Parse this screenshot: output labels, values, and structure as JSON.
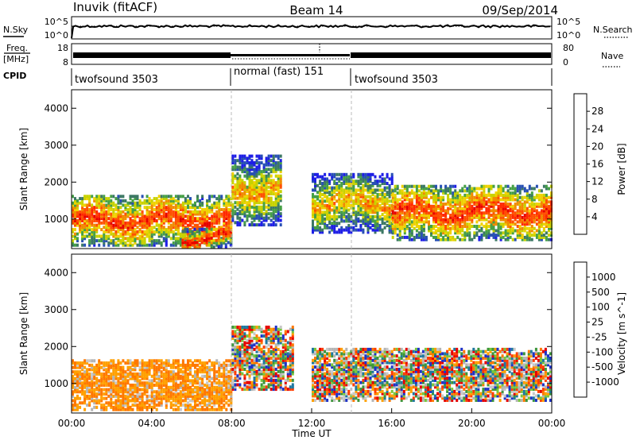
{
  "header": {
    "station": "Inuvik (fitACF)",
    "beam": "Beam 14",
    "date": "09/Sep/2014"
  },
  "noise_panel": {
    "left_label": "N.Sky",
    "right_label": "N.Search",
    "left_ticks": [
      "10^5",
      "10^0"
    ],
    "right_ticks": [
      "10^5",
      "10^0"
    ]
  },
  "freq_panel": {
    "left_label_1": "Freq.",
    "left_label_2": "[MHz]",
    "right_label": "Nave",
    "left_ticks": [
      "18",
      "8"
    ],
    "right_ticks": [
      "80",
      "0"
    ]
  },
  "cpid": {
    "label": "CPID",
    "segments": [
      {
        "name": "twofsound 3503",
        "start": 0,
        "end": 8
      },
      {
        "name": "normal (fast) 151",
        "start": 8,
        "end": 14
      },
      {
        "name": "twofsound 3503",
        "start": 14,
        "end": 24
      }
    ]
  },
  "colors": {
    "power": [
      "#1e1ee6",
      "#2850b4",
      "#3c7864",
      "#46a046",
      "#c8d200",
      "#f0d200",
      "#f08c00",
      "#ff5000",
      "#ff2800",
      "#e60000"
    ],
    "velocity": [
      "#1e32c8",
      "#1e78a0",
      "#3c963c",
      "#78c83c",
      "#b4b4b4",
      "#c8c8c8",
      "#ffa000",
      "#ff7800",
      "#ff3c00",
      "#e60000"
    ]
  },
  "chart_data": [
    {
      "type": "heatmap",
      "title": "",
      "xlabel": "",
      "ylabel": "Slant Range [km]",
      "x_range_hours": [
        0,
        24
      ],
      "ylim": [
        200,
        4500
      ],
      "yticks": [
        "1000",
        "2000",
        "3000",
        "4000"
      ],
      "colorbar": {
        "label": "Power [dB]",
        "range": [
          0,
          30
        ],
        "ticks": [
          "4",
          "8",
          "12",
          "16",
          "20",
          "24",
          "28"
        ]
      },
      "echo_regions": [
        {
          "t0": 0,
          "t1": 8,
          "r_low": 250,
          "r_high": 1600,
          "level": "high"
        },
        {
          "t0": 5.5,
          "t1": 8,
          "r_low": 200,
          "r_high": 700,
          "level": "max"
        },
        {
          "t0": 8,
          "t1": 10.5,
          "r_low": 800,
          "r_high": 2700,
          "level": "medium"
        },
        {
          "t0": 12,
          "t1": 16,
          "r_low": 600,
          "r_high": 2200,
          "level": "medium"
        },
        {
          "t0": 16,
          "t1": 24,
          "r_low": 400,
          "r_high": 1900,
          "level": "high"
        }
      ]
    },
    {
      "type": "heatmap",
      "title": "",
      "xlabel": "Time UT",
      "ylabel": "Slant Range [km]",
      "x_range_hours": [
        0,
        24
      ],
      "xticks": [
        "00:00",
        "04:00",
        "08:00",
        "12:00",
        "16:00",
        "20:00",
        "00:00"
      ],
      "ylim": [
        200,
        4500
      ],
      "yticks": [
        "1000",
        "2000",
        "3000",
        "4000"
      ],
      "colorbar": {
        "label": "Velocity [m s^-1]",
        "ticks": [
          "1000",
          "500",
          "100",
          "25",
          "-25",
          "-100",
          "-500",
          "-1000"
        ]
      },
      "echo_regions": [
        {
          "t0": 0,
          "t1": 8,
          "r_low": 250,
          "r_high": 1600,
          "sign": "away"
        },
        {
          "t0": 8,
          "t1": 11,
          "r_low": 800,
          "r_high": 2500,
          "sign": "mixed"
        },
        {
          "t0": 12,
          "t1": 24,
          "r_low": 500,
          "r_high": 1900,
          "sign": "mixed"
        }
      ]
    }
  ]
}
